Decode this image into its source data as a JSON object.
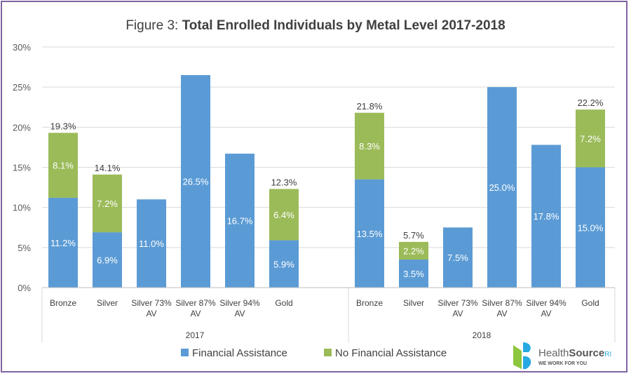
{
  "chart_data": {
    "type": "bar",
    "stacked": true,
    "title_prefix": "Figure 3: ",
    "title_main": "Total Enrolled Individuals by Metal Level 2017-2018",
    "ylim": [
      0,
      30
    ],
    "yticks": [
      "0%",
      "5%",
      "10%",
      "15%",
      "20%",
      "25%",
      "30%"
    ],
    "grid": true,
    "legend_position": "bottom",
    "groups": [
      {
        "label": "2017",
        "categories": [
          [
            "Bronze"
          ],
          [
            "Silver"
          ],
          [
            "Silver 73%",
            "AV"
          ],
          [
            "Silver 87%",
            "AV"
          ],
          [
            "Silver 94%",
            "AV"
          ],
          [
            "Gold"
          ]
        ]
      },
      {
        "label": "2018",
        "categories": [
          [
            "Bronze"
          ],
          [
            "Silver"
          ],
          [
            "Silver 73%",
            "AV"
          ],
          [
            "Silver 87%",
            "AV"
          ],
          [
            "Silver 94%",
            "AV"
          ],
          [
            "Gold"
          ]
        ]
      }
    ],
    "series": [
      {
        "name": "Financial Assistance",
        "color": "#5b9bd5",
        "values": [
          [
            11.2,
            6.9,
            11.0,
            26.5,
            16.7,
            5.9
          ],
          [
            13.5,
            3.5,
            7.5,
            25.0,
            17.8,
            15.0
          ]
        ],
        "labels": [
          [
            "11.2%",
            "6.9%",
            "11.0%",
            "26.5%",
            "16.7%",
            "5.9%"
          ],
          [
            "13.5%",
            "3.5%",
            "7.5%",
            "25.0%",
            "17.8%",
            "15.0%"
          ]
        ]
      },
      {
        "name": "No Financial Assistance",
        "color": "#9bbb59",
        "values": [
          [
            8.1,
            7.2,
            null,
            null,
            null,
            6.4
          ],
          [
            8.3,
            2.2,
            null,
            null,
            null,
            7.2
          ]
        ],
        "labels": [
          [
            "8.1%",
            "7.2%",
            null,
            null,
            null,
            "6.4%"
          ],
          [
            "8.3%",
            "2.2%",
            null,
            null,
            null,
            "7.2%"
          ]
        ]
      }
    ],
    "totals": [
      [
        "19.3%",
        "14.1%",
        null,
        null,
        null,
        "12.3%"
      ],
      [
        "21.8%",
        "5.7%",
        null,
        null,
        null,
        "22.2%"
      ]
    ]
  },
  "logo": {
    "name": "HealthSource",
    "suffix": "RI",
    "tagline": "WE WORK FOR YOU"
  }
}
